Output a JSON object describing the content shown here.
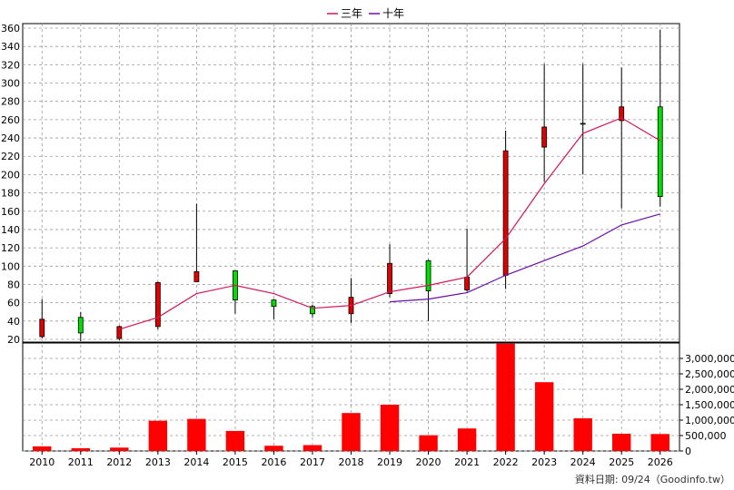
{
  "legend": {
    "series_3y": "三年",
    "series_10y": "十年"
  },
  "footer": "資料日期: 09/24（Goodinfo.tw）",
  "colors": {
    "up": "#00e000",
    "down": "#e00000",
    "line_3y": "#d4145a",
    "line_10y": "#6a0dad",
    "volume": "#ff0000"
  },
  "chart_data": {
    "type": "candlestick+line+bar",
    "years": [
      "2010",
      "2011",
      "2012",
      "2013",
      "2014",
      "2015",
      "2016",
      "2017",
      "2018",
      "2019",
      "2020",
      "2021",
      "2022",
      "2023",
      "2024",
      "2025",
      "2026"
    ],
    "price_axis": {
      "ylim": [
        20,
        360
      ],
      "ticks": [
        20,
        40,
        60,
        80,
        100,
        120,
        140,
        160,
        180,
        200,
        220,
        240,
        260,
        280,
        300,
        320,
        340,
        360
      ]
    },
    "volume_axis": {
      "ylim": [
        0,
        3500000
      ],
      "ticks": [
        0,
        500000,
        1000000,
        1500000,
        2000000,
        2500000,
        3000000
      ],
      "tick_labels": [
        "0",
        "500,000",
        "1,000,000",
        "1,500,000",
        "2,000,000",
        "2,500,000",
        "3,000,000"
      ]
    },
    "candles": [
      {
        "open": 42,
        "high": 64,
        "low": 21,
        "close": 23
      },
      {
        "open": 27,
        "high": 50,
        "low": 18,
        "close": 44
      },
      {
        "open": 34,
        "high": 35,
        "low": 19,
        "close": 21
      },
      {
        "open": 82,
        "high": 83,
        "low": 31,
        "close": 34
      },
      {
        "open": 94,
        "high": 168,
        "low": 84,
        "close": 83
      },
      {
        "open": 63,
        "high": 95,
        "low": 48,
        "close": 95
      },
      {
        "open": 56,
        "high": 64,
        "low": 42,
        "close": 63
      },
      {
        "open": 48,
        "high": 58,
        "low": 44,
        "close": 56
      },
      {
        "open": 66,
        "high": 87,
        "low": 38,
        "close": 48
      },
      {
        "open": 103,
        "high": 124,
        "low": 66,
        "close": 70
      },
      {
        "open": 73,
        "high": 107,
        "low": 40,
        "close": 106
      },
      {
        "open": 88,
        "high": 141,
        "low": 72,
        "close": 74
      },
      {
        "open": 226,
        "high": 248,
        "low": 75,
        "close": 90
      },
      {
        "open": 252,
        "high": 321,
        "low": 192,
        "close": 230
      },
      {
        "open": 255,
        "high": 321,
        "low": 200,
        "close": 256
      },
      {
        "open": 274,
        "high": 317,
        "low": 163,
        "close": 259
      },
      {
        "open": 176,
        "high": 358,
        "low": 165,
        "close": 274
      }
    ],
    "ma_3y": [
      null,
      null,
      31,
      44,
      70,
      79,
      70,
      54,
      57,
      72,
      79,
      88,
      130,
      190,
      245,
      262,
      237
    ],
    "ma_10y": [
      null,
      null,
      null,
      null,
      null,
      null,
      null,
      null,
      null,
      61,
      64,
      71,
      90,
      106,
      122,
      145,
      157
    ],
    "volume": [
      150000,
      90000,
      110000,
      980000,
      1040000,
      650000,
      170000,
      190000,
      1230000,
      1500000,
      510000,
      730000,
      3480000,
      2230000,
      1060000,
      560000,
      550000
    ]
  }
}
